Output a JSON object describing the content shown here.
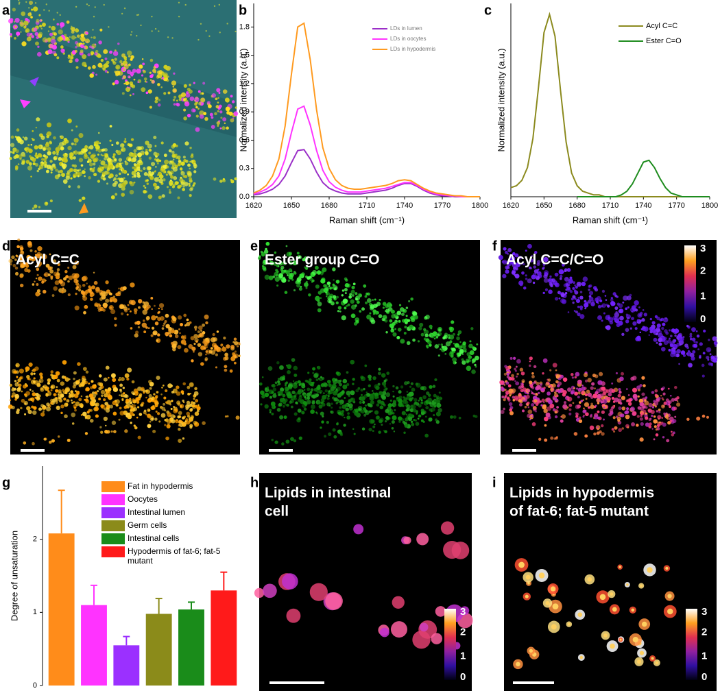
{
  "images": [
    {
      "label": "a"
    },
    {
      "label": "d",
      "title": [
        "Acyl C=C"
      ]
    },
    {
      "label": "e",
      "title": [
        "Ester group C=O"
      ]
    },
    {
      "label": "f",
      "title": [
        "Acyl C=C/C=O"
      ],
      "colorbar_ticks": [
        0,
        1,
        2,
        3
      ]
    },
    {
      "label": "h",
      "title": [
        "Lipids in intestinal",
        "cell"
      ],
      "colorbar_ticks": [
        0,
        1,
        2,
        3
      ]
    },
    {
      "label": "i",
      "title": [
        "Lipids in hypodermis",
        "of fat-6; fat-5 mutant"
      ],
      "colorbar_ticks": [
        0,
        1,
        2,
        3
      ]
    }
  ],
  "chart_data": [
    {
      "type": "line",
      "label": "b",
      "xlabel": "Raman shift (cm⁻¹)",
      "ylabel": "Normalized intensity (a.u.)",
      "x": [
        1620,
        1625,
        1630,
        1635,
        1640,
        1645,
        1650,
        1655,
        1660,
        1665,
        1670,
        1675,
        1680,
        1685,
        1690,
        1695,
        1700,
        1705,
        1710,
        1715,
        1720,
        1725,
        1730,
        1735,
        1740,
        1745,
        1750,
        1755,
        1760,
        1765,
        1770,
        1775,
        1780,
        1785,
        1790,
        1795,
        1800
      ],
      "xlim": [
        1620,
        1800
      ],
      "xticks": [
        1620,
        1650,
        1680,
        1710,
        1740,
        1770,
        1800
      ],
      "ylim": [
        0,
        2.05
      ],
      "yticks": [
        {
          "value": 0,
          "label": "0.0"
        },
        0.3,
        0.6,
        0.9,
        1.2,
        1.5,
        1.8
      ],
      "series": [
        {
          "name": "LDs in lumen",
          "color": "#9b30c8",
          "values": [
            0.02,
            0.03,
            0.05,
            0.08,
            0.13,
            0.22,
            0.36,
            0.49,
            0.5,
            0.4,
            0.26,
            0.15,
            0.09,
            0.06,
            0.04,
            0.03,
            0.03,
            0.03,
            0.04,
            0.05,
            0.06,
            0.07,
            0.09,
            0.12,
            0.14,
            0.14,
            0.11,
            0.07,
            0.04,
            0.02,
            0.01,
            0.01,
            0,
            0,
            0,
            0,
            0
          ]
        },
        {
          "name": "LDs in oocytes",
          "color": "#ff33ff",
          "values": [
            0.03,
            0.05,
            0.08,
            0.13,
            0.22,
            0.4,
            0.68,
            0.93,
            0.96,
            0.76,
            0.49,
            0.28,
            0.16,
            0.1,
            0.07,
            0.05,
            0.05,
            0.05,
            0.06,
            0.07,
            0.08,
            0.09,
            0.11,
            0.13,
            0.15,
            0.15,
            0.12,
            0.08,
            0.05,
            0.03,
            0.02,
            0.01,
            0.01,
            0,
            0,
            0,
            0
          ]
        },
        {
          "name": "LDs in hypodermis",
          "color": "#ff9a1f",
          "values": [
            0.04,
            0.07,
            0.12,
            0.22,
            0.4,
            0.75,
            1.3,
            1.8,
            1.84,
            1.45,
            0.92,
            0.52,
            0.3,
            0.18,
            0.12,
            0.09,
            0.08,
            0.08,
            0.09,
            0.1,
            0.11,
            0.12,
            0.14,
            0.17,
            0.18,
            0.17,
            0.13,
            0.09,
            0.06,
            0.04,
            0.03,
            0.02,
            0.01,
            0.01,
            0,
            0,
            0
          ]
        }
      ]
    },
    {
      "type": "line",
      "label": "c",
      "xlabel": "Raman shift (cm⁻¹)",
      "ylabel": "Normalized intensity (a.u.)",
      "x": [
        1620,
        1625,
        1630,
        1635,
        1640,
        1645,
        1650,
        1655,
        1660,
        1665,
        1670,
        1675,
        1680,
        1685,
        1690,
        1695,
        1700,
        1705,
        1710,
        1715,
        1720,
        1725,
        1730,
        1735,
        1740,
        1745,
        1750,
        1755,
        1760,
        1765,
        1770,
        1775,
        1780,
        1785,
        1790,
        1795,
        1800
      ],
      "xlim": [
        1620,
        1800
      ],
      "xticks": [
        1620,
        1650,
        1680,
        1710,
        1740,
        1770,
        1800
      ],
      "ylim": [
        0,
        1.06
      ],
      "series": [
        {
          "name": "Acyl C=C",
          "color": "#8b8a1e",
          "values": [
            0.05,
            0.06,
            0.09,
            0.16,
            0.32,
            0.6,
            0.9,
            1.0,
            0.88,
            0.58,
            0.3,
            0.13,
            0.06,
            0.03,
            0.02,
            0.01,
            0.01,
            0,
            0,
            0,
            0,
            0,
            0,
            0,
            0,
            0,
            0,
            0,
            0,
            0,
            0,
            0,
            0,
            0,
            0,
            0,
            0
          ]
        },
        {
          "name": "Ester C=O",
          "color": "#1e8c1e",
          "values": [
            null,
            null,
            null,
            null,
            null,
            null,
            null,
            null,
            null,
            null,
            null,
            null,
            0,
            0,
            0,
            0,
            0,
            0,
            0,
            0,
            0.01,
            0.03,
            0.07,
            0.13,
            0.19,
            0.2,
            0.16,
            0.1,
            0.05,
            0.02,
            0.01,
            0,
            0,
            0,
            0,
            0,
            0
          ]
        }
      ]
    },
    {
      "type": "bar",
      "label": "g",
      "ylabel": "Degree of unsaturation",
      "categories": [
        "Fat in hypodermis",
        "Oocytes",
        "Intestinal lumen",
        "Germ cells",
        "Intestinal cells",
        "Hypodermis of fat-6; fat-5 mutant"
      ],
      "values": [
        2.08,
        1.1,
        0.55,
        0.98,
        1.04,
        1.3
      ],
      "errors": [
        0.59,
        0.27,
        0.12,
        0.21,
        0.1,
        0.25
      ],
      "colors": [
        "#ff8c1a",
        "#ff33ff",
        "#9b30ff",
        "#8b8b1a",
        "#1a8c1a",
        "#ff1a1a"
      ],
      "ylim": [
        0,
        3
      ],
      "yticks": [
        0,
        1,
        2
      ]
    }
  ]
}
